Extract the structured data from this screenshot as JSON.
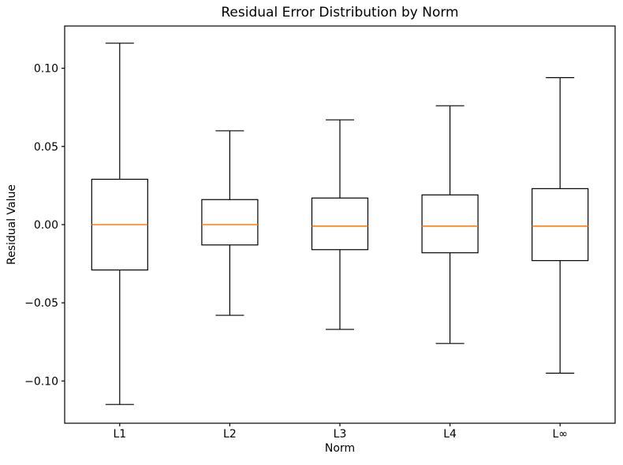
{
  "figure": {
    "background": "#ffffff"
  },
  "chart_data": {
    "type": "box",
    "title": "Residual Error Distribution by Norm",
    "xlabel": "Norm",
    "ylabel": "Residual Value",
    "categories": [
      "L1",
      "L2",
      "L3",
      "L4",
      "L∞"
    ],
    "ylim": [
      -0.127,
      0.127
    ],
    "yticks": [
      {
        "value": 0.1,
        "label": "0.10"
      },
      {
        "value": 0.05,
        "label": "0.05"
      },
      {
        "value": 0.0,
        "label": "0.00"
      },
      {
        "value": -0.05,
        "label": "−0.05"
      },
      {
        "value": -0.1,
        "label": "−0.10"
      }
    ],
    "grid": false,
    "legend_position": "none",
    "colors": {
      "box_line": "#000000",
      "median_line": "#ff7f0e",
      "axis_line": "#000000",
      "text": "#000000",
      "background": "#ffffff"
    },
    "series": [
      {
        "category": "L1",
        "whisker_low": -0.115,
        "q1": -0.029,
        "median": 0.0,
        "q3": 0.029,
        "whisker_high": 0.116
      },
      {
        "category": "L2",
        "whisker_low": -0.058,
        "q1": -0.013,
        "median": 0.0,
        "q3": 0.016,
        "whisker_high": 0.06
      },
      {
        "category": "L3",
        "whisker_low": -0.067,
        "q1": -0.016,
        "median": -0.001,
        "q3": 0.017,
        "whisker_high": 0.067
      },
      {
        "category": "L4",
        "whisker_low": -0.076,
        "q1": -0.018,
        "median": -0.001,
        "q3": 0.019,
        "whisker_high": 0.076
      },
      {
        "category": "L∞",
        "whisker_low": -0.095,
        "q1": -0.023,
        "median": -0.001,
        "q3": 0.023,
        "whisker_high": 0.094
      }
    ]
  }
}
